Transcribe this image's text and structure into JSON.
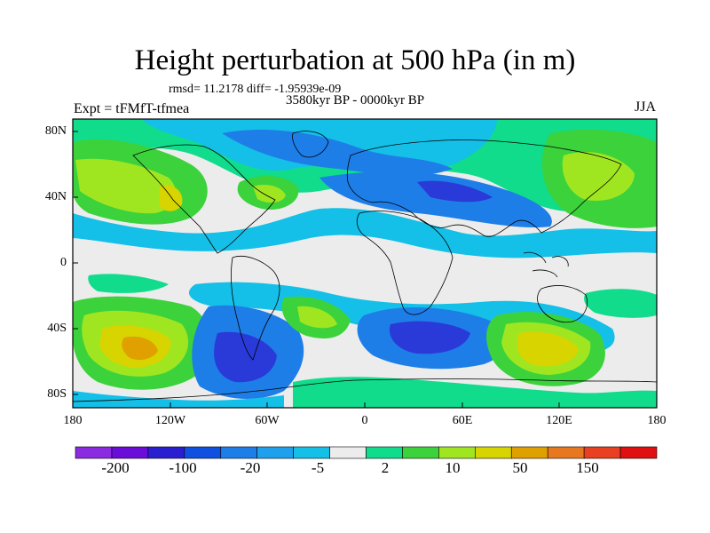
{
  "title": "Height perturbation at 500 hPa (in m)",
  "stats_line": "rmsd= 11.2178 diff= -1.95939e-09",
  "period": "3580kyr BP - 0000kyr BP",
  "experiment": "Expt = tFMfT-tfmea",
  "season": "JJA",
  "map": {
    "lat_labels": [
      "80N",
      "40N",
      "0",
      "40S",
      "80S"
    ],
    "lon_labels": [
      "180",
      "120W",
      "60W",
      "0",
      "60E",
      "120E",
      "180"
    ],
    "land_color": "#e6e6e6",
    "coast_color": "#000000"
  },
  "colorbar": {
    "colors": [
      "#8a2be2",
      "#6a0dd8",
      "#2a1fd0",
      "#1050e0",
      "#1e7ee8",
      "#1ea0ec",
      "#14c0e8",
      "#ececec",
      "#10dc8c",
      "#3cd23c",
      "#a0e620",
      "#d8d400",
      "#e0a000",
      "#e87820",
      "#e84020",
      "#e01010"
    ],
    "labels": [
      "-200",
      "-100",
      "-20",
      "-5",
      "2",
      "10",
      "50",
      "150"
    ]
  },
  "field_colors": {
    "strong_neg": "#2a3ad8",
    "neg": "#1e7ee8",
    "weak_neg": "#14c0e8",
    "neutral": "#ececec",
    "weak_pos": "#10dc8c",
    "pos": "#3cd23c",
    "mid_pos": "#a0e620",
    "high_pos": "#d8d400",
    "very_high_pos": "#e0a000"
  }
}
